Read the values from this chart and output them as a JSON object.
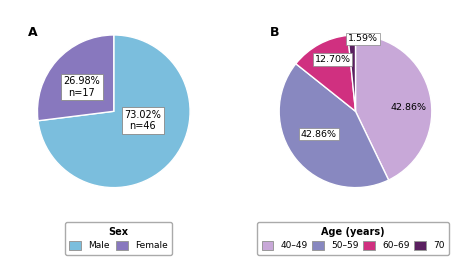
{
  "pie_a": {
    "values": [
      73.02,
      26.98
    ],
    "colors": [
      "#7BBEDD",
      "#8878BE"
    ],
    "label_A": "A",
    "legend_title": "Sex",
    "legend_labels": [
      "Male",
      "Female"
    ],
    "startangle": 90,
    "explode": [
      0,
      0.0
    ]
  },
  "pie_b": {
    "values": [
      42.86,
      42.86,
      12.7,
      1.59
    ],
    "colors": [
      "#C8A8D8",
      "#8888C0",
      "#D03080",
      "#5A2060"
    ],
    "label_B": "B",
    "legend_title": "Age (years)",
    "legend_labels": [
      "40–49",
      "50–59",
      "60–69",
      "70"
    ],
    "startangle": 90
  },
  "bg_color": "#ffffff",
  "label_fontsize": 7.0,
  "anno_fontsize": 6.8
}
